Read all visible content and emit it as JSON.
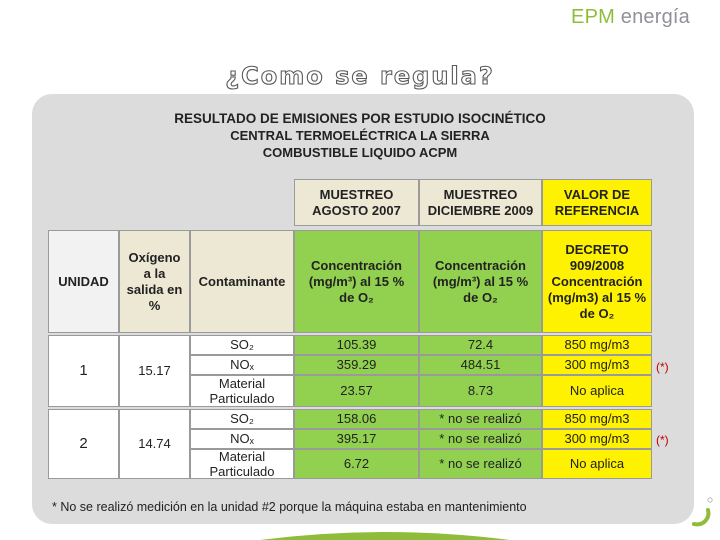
{
  "logo": {
    "brand": "EPM",
    "suffix": " energía"
  },
  "slide_title": "¿Como se regula?",
  "heading": {
    "line1": "RESULTADO DE EMISIONES POR ESTUDIO ISOCINÉTICO",
    "line2": "CENTRAL TERMOELÉCTRICA LA SIERRA",
    "line3": "COMBUSTIBLE LIQUIDO ACPM"
  },
  "table": {
    "top_headers": {
      "m2007": "MUESTREO AGOSTO 2007",
      "m2009": "MUESTREO DICIEMBRE 2009",
      "ref": "VALOR DE REFERENCIA"
    },
    "col_headers": {
      "unidad": "UNIDAD",
      "oxigeno": "Oxígeno a la salida en %",
      "contaminante": "Contaminante",
      "conc2007": "Concentración (mg/m³) al 15 % de O₂",
      "conc2009": "Concentración (mg/m³) al 15 % de O₂",
      "decreto": "DECRETO 909/2008 Concentración (mg/m3) al 15 % de O₂"
    },
    "units": [
      {
        "unidad": "1",
        "oxigeno": "15.17",
        "rows": [
          {
            "contaminante": "SO₂",
            "v2007": "105.39",
            "v2009": "72.4",
            "ref": "850 mg/m3",
            "note": ""
          },
          {
            "contaminante": "NOₓ",
            "v2007": "359.29",
            "v2009": "484.51",
            "ref": "300 mg/m3",
            "note": "(*)"
          },
          {
            "contaminante": "Material Particulado",
            "v2007": "23.57",
            "v2009": "8.73",
            "ref": "No aplica",
            "note": ""
          }
        ]
      },
      {
        "unidad": "2",
        "oxigeno": "14.74",
        "rows": [
          {
            "contaminante": "SO₂",
            "v2007": "158.06",
            "v2009": "* no se realizó",
            "ref": "850 mg/m3",
            "note": ""
          },
          {
            "contaminante": "NOₓ",
            "v2007": "395.17",
            "v2009": "* no se realizó",
            "ref": "300 mg/m3",
            "note": "(*)"
          },
          {
            "contaminante": "Material Particulado",
            "v2007": "6.72",
            "v2009": "* no se realizó",
            "ref": "No aplica",
            "note": ""
          }
        ]
      }
    ]
  },
  "footnote": "*  No se realizó medición en la unidad #2 porque la máquina estaba en mantenimiento",
  "colors": {
    "green": "#92d050",
    "yellow": "#fff200",
    "beige": "#ece8d4",
    "note_red": "#c00000",
    "brand_green": "#8fbc3a"
  }
}
